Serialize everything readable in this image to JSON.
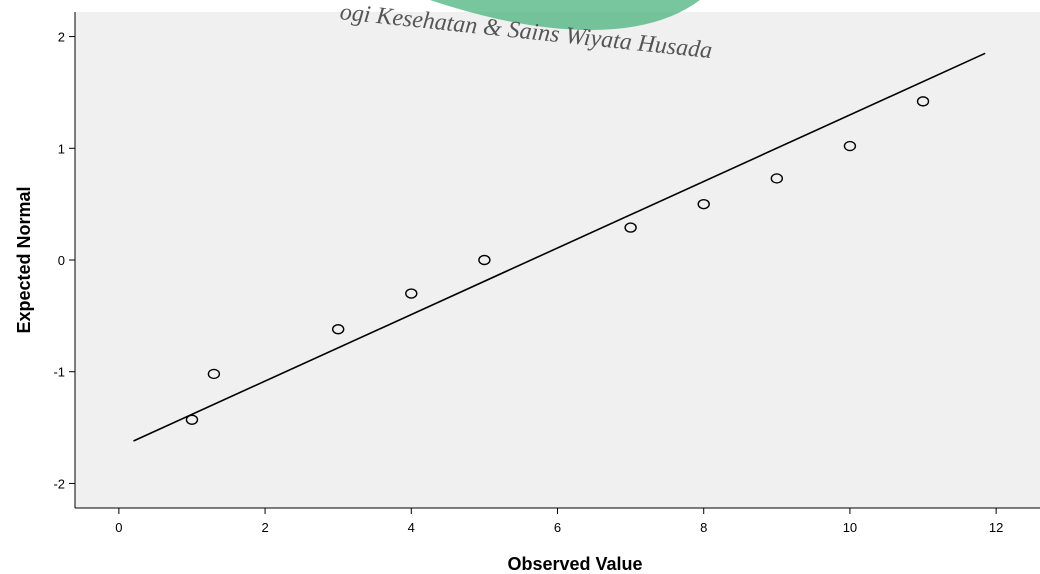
{
  "chart_data": {
    "type": "scatter",
    "title": "",
    "xlabel": "Observed Value",
    "ylabel": "Expected Normal",
    "xlim": [
      -0.6,
      12.6
    ],
    "ylim": [
      -2.22,
      2.22
    ],
    "xticks": [
      0,
      2,
      4,
      6,
      8,
      10,
      12
    ],
    "yticks": [
      -2,
      -1,
      0,
      1,
      2
    ],
    "grid": false,
    "background": "#f0f0f0",
    "points": [
      {
        "x": 1.0,
        "y": -1.43
      },
      {
        "x": 1.3,
        "y": -1.02
      },
      {
        "x": 3.0,
        "y": -0.62
      },
      {
        "x": 4.0,
        "y": -0.3
      },
      {
        "x": 5.0,
        "y": 0.0
      },
      {
        "x": 7.0,
        "y": 0.29
      },
      {
        "x": 8.0,
        "y": 0.5
      },
      {
        "x": 9.0,
        "y": 0.73
      },
      {
        "x": 10.0,
        "y": 1.02
      },
      {
        "x": 11.0,
        "y": 1.42
      }
    ],
    "reference_line": {
      "x1": 0.2,
      "y1": -1.62,
      "x2": 11.85,
      "y2": 1.85
    }
  },
  "watermark": {
    "text": "ogi Kesehatan & Sains   Wiyata Husada",
    "color": "#3fae74"
  }
}
